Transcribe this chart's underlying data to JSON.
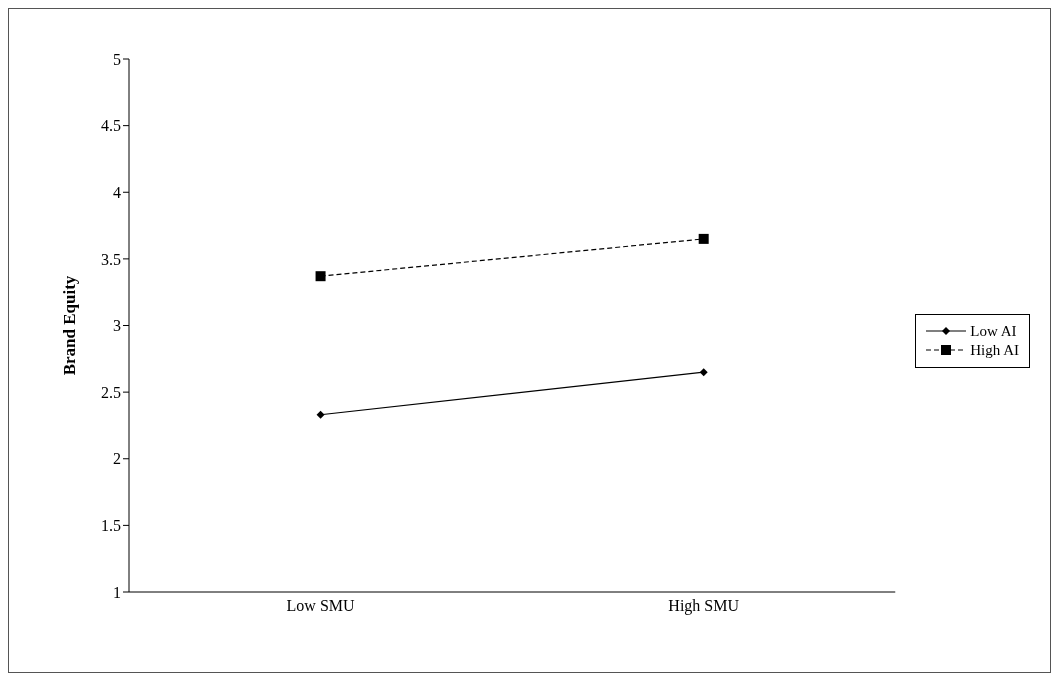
{
  "chart_data": {
    "type": "line",
    "ylabel": "Brand Equity",
    "categories": [
      "Low SMU",
      "High SMU"
    ],
    "series": [
      {
        "name": "Low AI",
        "color": "#000000",
        "values": [
          2.33,
          2.65
        ],
        "marker": "diamond",
        "line_style": "solid"
      },
      {
        "name": "High AI",
        "color": "#000000",
        "values": [
          3.37,
          3.65
        ],
        "marker": "square",
        "line_style": "dashed"
      }
    ],
    "ylim": [
      1,
      5
    ],
    "yticks": [
      1,
      1.5,
      2,
      2.5,
      3,
      3.5,
      4,
      4.5,
      5
    ],
    "grid": false,
    "legend": "right"
  }
}
